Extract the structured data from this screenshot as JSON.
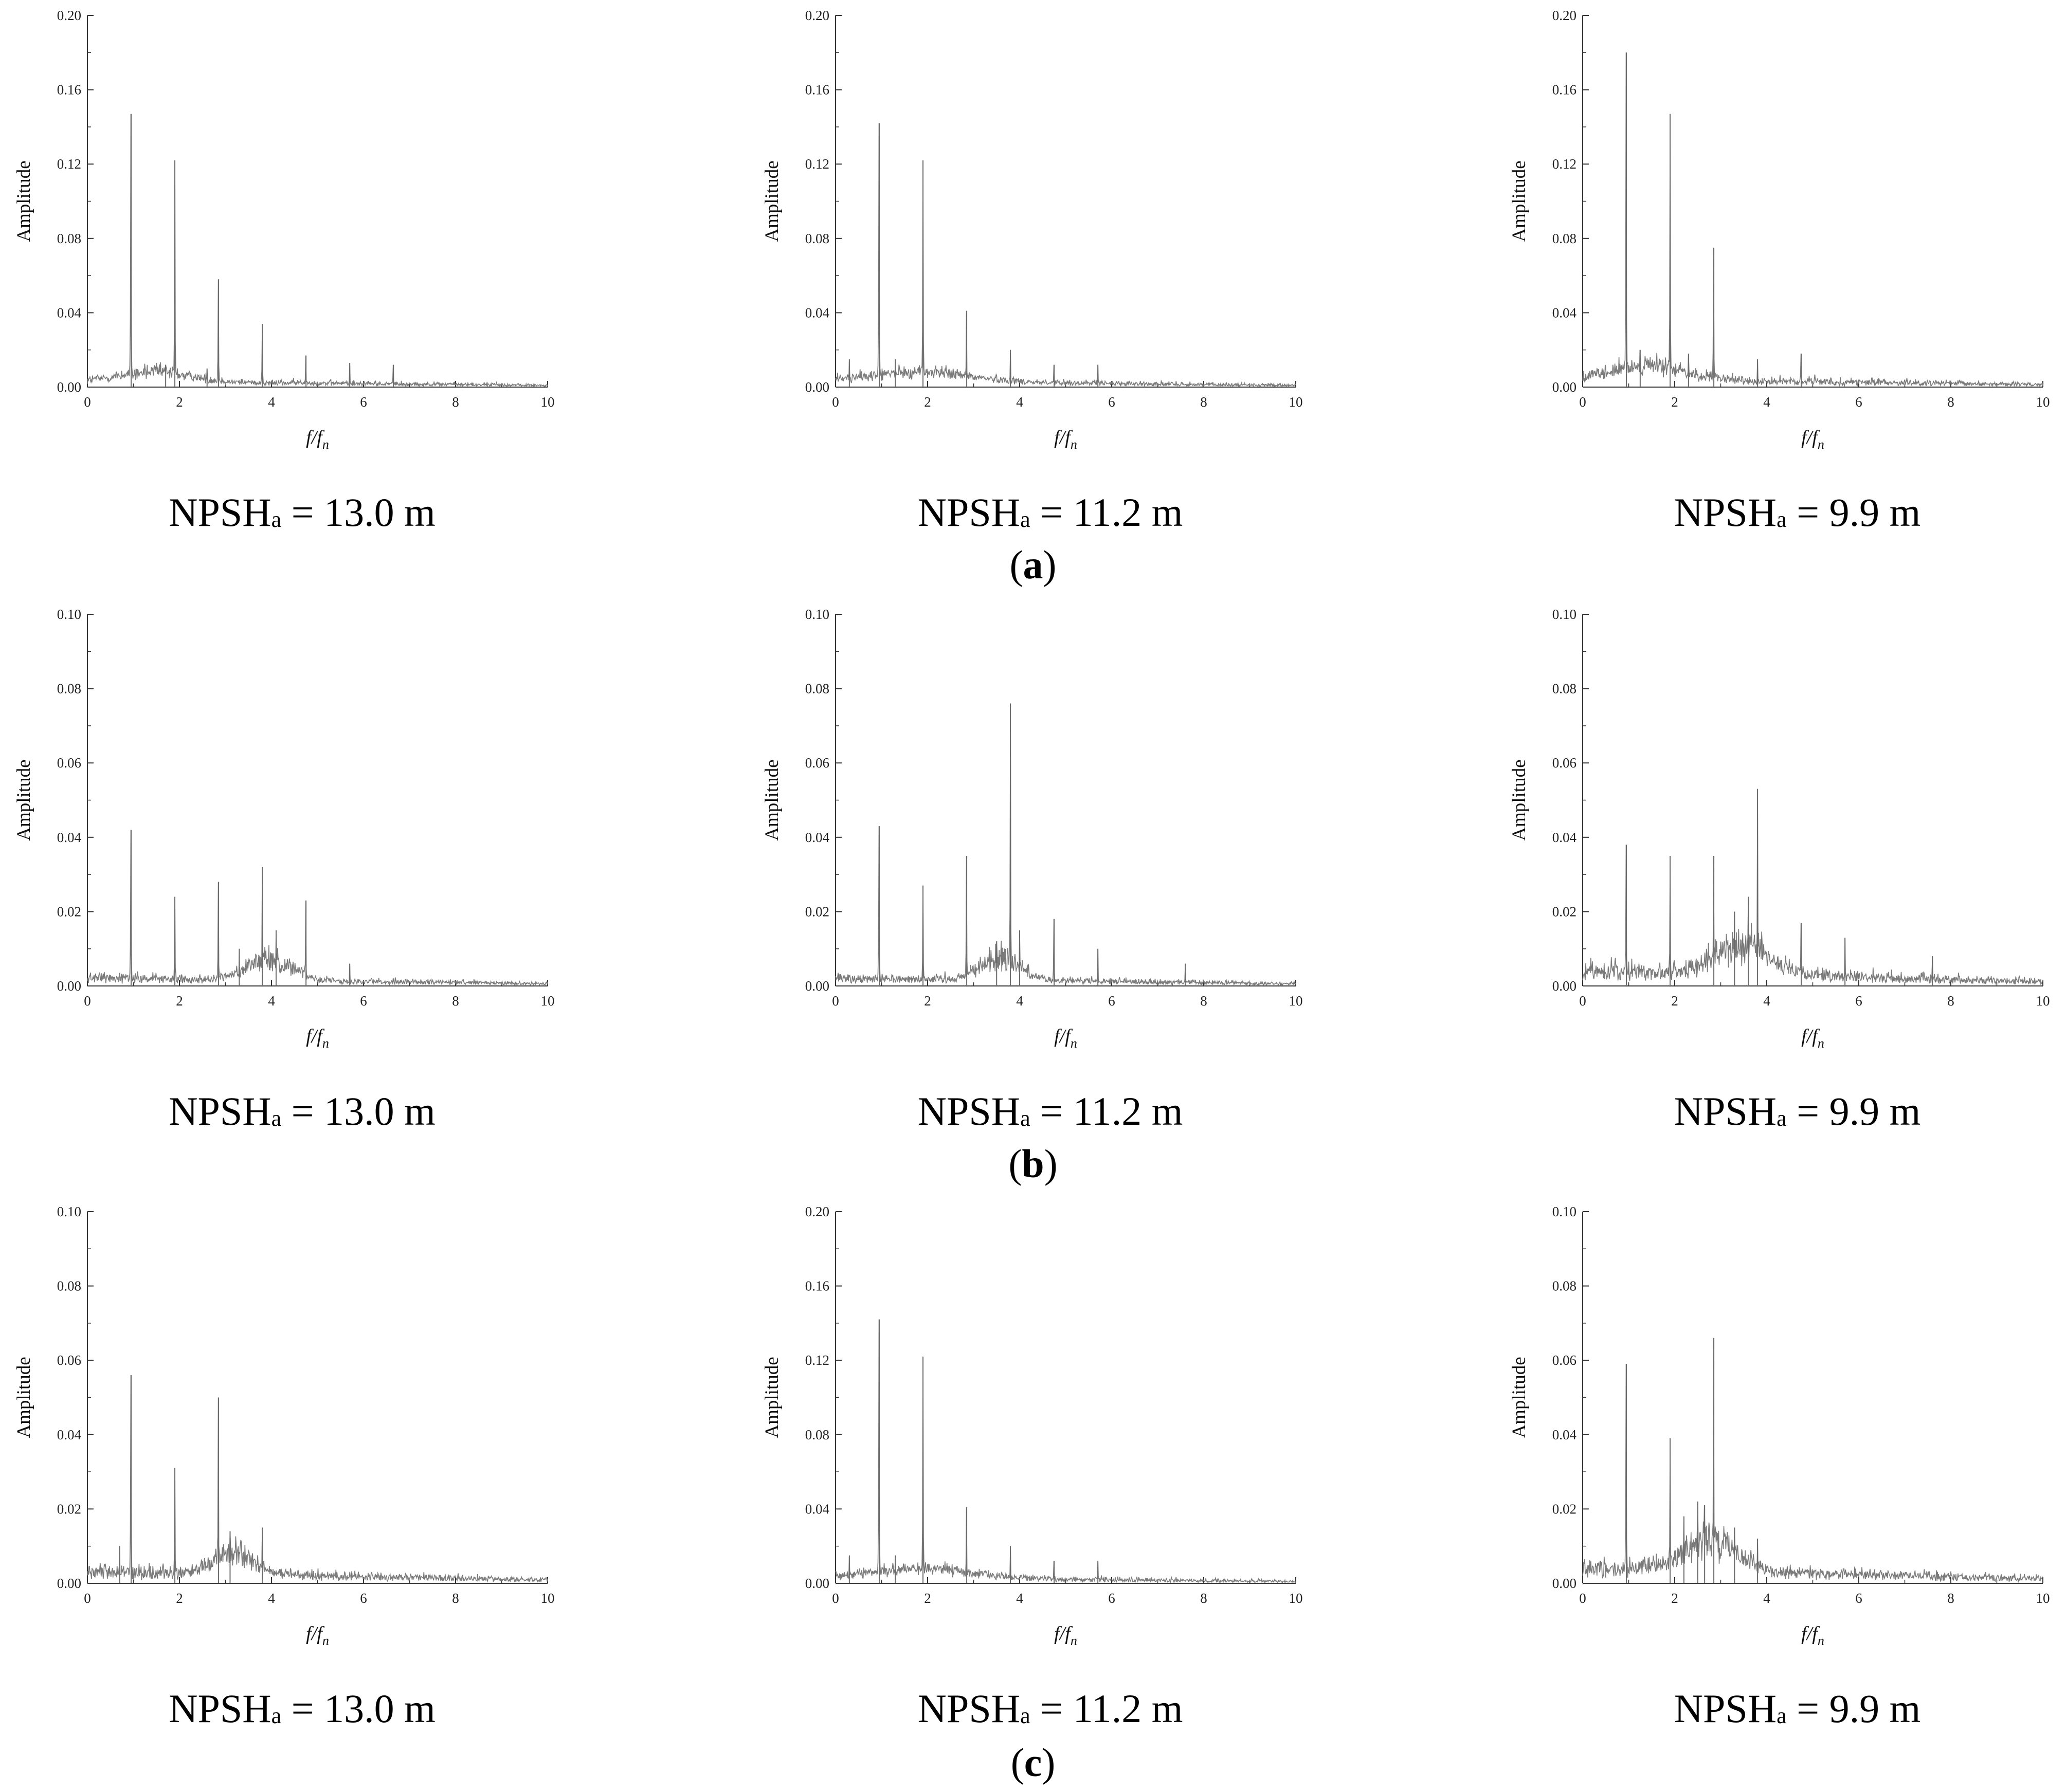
{
  "figure": {
    "row_labels": [
      {
        "open": "(",
        "letter": "a",
        "close": ")"
      },
      {
        "open": "(",
        "letter": "b",
        "close": ")"
      },
      {
        "open": "(",
        "letter": "c",
        "close": ")"
      }
    ]
  },
  "chart_data": [
    {
      "type": "line",
      "row": "a",
      "ylabel": "Amplitude",
      "xlabel_main": "f/f",
      "xlabel_sub": "n",
      "ylim": [
        0,
        0.2
      ],
      "xlim": [
        0,
        10
      ],
      "yticks": [
        "0.00",
        "0.04",
        "0.08",
        "0.12",
        "0.16",
        "0.20"
      ],
      "xticks": [
        "0",
        "2",
        "4",
        "6",
        "8",
        "10"
      ],
      "caption": {
        "main": "NPSH",
        "sub": "a",
        "rest": " = 13.0 m"
      },
      "noise": {
        "base": 0.003,
        "amp": 0.005,
        "bumps": [
          [
            1.5,
            1.0,
            0.007
          ]
        ]
      },
      "peaks": [
        [
          0.95,
          0.147
        ],
        [
          1.9,
          0.122
        ],
        [
          2.85,
          0.058
        ],
        [
          3.8,
          0.034
        ],
        [
          4.75,
          0.017
        ],
        [
          5.7,
          0.013
        ],
        [
          6.65,
          0.012
        ],
        [
          2.6,
          0.01
        ],
        [
          1.7,
          0.012
        ]
      ]
    },
    {
      "type": "line",
      "row": "a",
      "ylabel": "Amplitude",
      "xlabel_main": "f/f",
      "xlabel_sub": "n",
      "ylim": [
        0,
        0.2
      ],
      "xlim": [
        0,
        10
      ],
      "yticks": [
        "0.00",
        "0.04",
        "0.08",
        "0.12",
        "0.16",
        "0.20"
      ],
      "xticks": [
        "0",
        "2",
        "4",
        "6",
        "8",
        "10"
      ],
      "caption": {
        "main": "NPSH",
        "sub": "a",
        "rest": " = 11.2 m"
      },
      "noise": {
        "base": 0.003,
        "amp": 0.005,
        "bumps": [
          [
            2.0,
            1.5,
            0.007
          ]
        ]
      },
      "peaks": [
        [
          0.95,
          0.142
        ],
        [
          1.9,
          0.122
        ],
        [
          2.85,
          0.041
        ],
        [
          3.8,
          0.02
        ],
        [
          4.75,
          0.012
        ],
        [
          5.7,
          0.012
        ],
        [
          0.3,
          0.015
        ],
        [
          1.3,
          0.015
        ]
      ]
    },
    {
      "type": "line",
      "row": "a",
      "ylabel": "Amplitude",
      "xlabel_main": "f/f",
      "xlabel_sub": "n",
      "ylim": [
        0,
        0.2
      ],
      "xlim": [
        0,
        10
      ],
      "yticks": [
        "0.00",
        "0.04",
        "0.08",
        "0.12",
        "0.16",
        "0.20"
      ],
      "xticks": [
        "0",
        "2",
        "4",
        "6",
        "8",
        "10"
      ],
      "caption": {
        "main": "NPSH",
        "sub": "a",
        "rest": " = 9.9 m"
      },
      "noise": {
        "base": 0.004,
        "amp": 0.007,
        "bumps": [
          [
            1.5,
            1.0,
            0.01
          ]
        ]
      },
      "peaks": [
        [
          0.95,
          0.18
        ],
        [
          1.9,
          0.147
        ],
        [
          2.85,
          0.075
        ],
        [
          3.8,
          0.015
        ],
        [
          4.75,
          0.018
        ],
        [
          1.25,
          0.02
        ],
        [
          2.3,
          0.018
        ]
      ]
    },
    {
      "type": "line",
      "row": "b",
      "ylabel": "Amplitude",
      "xlabel_main": "f/f",
      "xlabel_sub": "n",
      "ylim": [
        0,
        0.1
      ],
      "xlim": [
        0,
        10
      ],
      "yticks": [
        "0.00",
        "0.02",
        "0.04",
        "0.06",
        "0.08",
        "0.10"
      ],
      "xticks": [
        "0",
        "2",
        "4",
        "6",
        "8",
        "10"
      ],
      "caption": {
        "main": "NPSH",
        "sub": "a",
        "rest": " = 13.0 m"
      },
      "noise": {
        "base": 0.002,
        "amp": 0.003,
        "bumps": [
          [
            4.0,
            0.7,
            0.009
          ]
        ]
      },
      "peaks": [
        [
          0.95,
          0.042
        ],
        [
          1.9,
          0.024
        ],
        [
          2.85,
          0.028
        ],
        [
          3.8,
          0.032
        ],
        [
          4.75,
          0.023
        ],
        [
          5.7,
          0.006
        ],
        [
          4.1,
          0.015
        ],
        [
          3.3,
          0.01
        ]
      ]
    },
    {
      "type": "line",
      "row": "b",
      "ylabel": "Amplitude",
      "xlabel_main": "f/f",
      "xlabel_sub": "n",
      "ylim": [
        0,
        0.1
      ],
      "xlim": [
        0,
        10
      ],
      "yticks": [
        "0.00",
        "0.02",
        "0.04",
        "0.06",
        "0.08",
        "0.10"
      ],
      "xticks": [
        "0",
        "2",
        "4",
        "6",
        "8",
        "10"
      ],
      "caption": {
        "main": "NPSH",
        "sub": "a",
        "rest": " = 11.2 m"
      },
      "noise": {
        "base": 0.002,
        "amp": 0.003,
        "bumps": [
          [
            3.6,
            0.6,
            0.01
          ]
        ]
      },
      "peaks": [
        [
          0.95,
          0.043
        ],
        [
          1.9,
          0.027
        ],
        [
          2.85,
          0.035
        ],
        [
          3.8,
          0.076
        ],
        [
          4.75,
          0.018
        ],
        [
          5.7,
          0.01
        ],
        [
          7.6,
          0.006
        ],
        [
          4.0,
          0.015
        ],
        [
          3.5,
          0.012
        ]
      ]
    },
    {
      "type": "line",
      "row": "b",
      "ylabel": "Amplitude",
      "xlabel_main": "f/f",
      "xlabel_sub": "n",
      "ylim": [
        0,
        0.1
      ],
      "xlim": [
        0,
        10
      ],
      "yticks": [
        "0.00",
        "0.02",
        "0.04",
        "0.06",
        "0.08",
        "0.10"
      ],
      "xticks": [
        "0",
        "2",
        "4",
        "6",
        "8",
        "10"
      ],
      "caption": {
        "main": "NPSH",
        "sub": "a",
        "rest": " = 9.9 m"
      },
      "noise": {
        "base": 0.004,
        "amp": 0.005,
        "bumps": [
          [
            3.5,
            0.8,
            0.013
          ]
        ]
      },
      "peaks": [
        [
          0.95,
          0.038
        ],
        [
          1.9,
          0.035
        ],
        [
          2.85,
          0.035
        ],
        [
          3.8,
          0.053
        ],
        [
          4.75,
          0.017
        ],
        [
          5.7,
          0.013
        ],
        [
          7.6,
          0.008
        ],
        [
          3.6,
          0.024
        ],
        [
          3.3,
          0.02
        ]
      ]
    },
    {
      "type": "line",
      "row": "c",
      "ylabel": "Amplitude",
      "xlabel_main": "f/f",
      "xlabel_sub": "n",
      "ylim": [
        0,
        0.1
      ],
      "xlim": [
        0,
        10
      ],
      "yticks": [
        "0.00",
        "0.02",
        "0.04",
        "0.06",
        "0.08",
        "0.10"
      ],
      "xticks": [
        "0",
        "2",
        "4",
        "6",
        "8",
        "10"
      ],
      "caption": {
        "main": "NPSH",
        "sub": "a",
        "rest": " = 13.0 m"
      },
      "noise": {
        "base": 0.003,
        "amp": 0.004,
        "bumps": [
          [
            3.2,
            0.6,
            0.009
          ]
        ]
      },
      "peaks": [
        [
          0.95,
          0.056
        ],
        [
          1.9,
          0.031
        ],
        [
          2.85,
          0.05
        ],
        [
          3.8,
          0.015
        ],
        [
          3.1,
          0.014
        ],
        [
          0.7,
          0.01
        ]
      ]
    },
    {
      "type": "line",
      "row": "c",
      "ylabel": "Amplitude",
      "xlabel_main": "f/f",
      "xlabel_sub": "n",
      "ylim": [
        0,
        0.2
      ],
      "xlim": [
        0,
        10
      ],
      "yticks": [
        "0.00",
        "0.04",
        "0.08",
        "0.12",
        "0.16",
        "0.20"
      ],
      "xticks": [
        "0",
        "2",
        "4",
        "6",
        "8",
        "10"
      ],
      "caption": {
        "main": "NPSH",
        "sub": "a",
        "rest": " = 11.2 m"
      },
      "noise": {
        "base": 0.003,
        "amp": 0.005,
        "bumps": [
          [
            2.0,
            1.5,
            0.007
          ]
        ]
      },
      "peaks": [
        [
          0.95,
          0.142
        ],
        [
          1.9,
          0.122
        ],
        [
          2.85,
          0.041
        ],
        [
          3.8,
          0.02
        ],
        [
          4.75,
          0.012
        ],
        [
          5.7,
          0.012
        ],
        [
          0.3,
          0.015
        ],
        [
          1.3,
          0.015
        ]
      ]
    },
    {
      "type": "line",
      "row": "c",
      "ylabel": "Amplitude",
      "xlabel_main": "f/f",
      "xlabel_sub": "n",
      "ylim": [
        0,
        0.1
      ],
      "xlim": [
        0,
        10
      ],
      "yticks": [
        "0.00",
        "0.02",
        "0.04",
        "0.06",
        "0.08",
        "0.10"
      ],
      "xticks": [
        "0",
        "2",
        "4",
        "6",
        "8",
        "10"
      ],
      "caption": {
        "main": "NPSH",
        "sub": "a",
        "rest": " = 9.9 m"
      },
      "noise": {
        "base": 0.004,
        "amp": 0.005,
        "bumps": [
          [
            2.8,
            0.8,
            0.012
          ]
        ]
      },
      "peaks": [
        [
          0.95,
          0.059
        ],
        [
          1.9,
          0.039
        ],
        [
          2.85,
          0.066
        ],
        [
          2.5,
          0.022
        ],
        [
          2.65,
          0.021
        ],
        [
          3.3,
          0.015
        ],
        [
          3.8,
          0.012
        ],
        [
          2.2,
          0.018
        ]
      ]
    }
  ]
}
